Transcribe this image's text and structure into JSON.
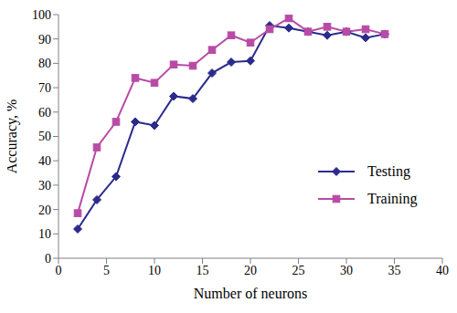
{
  "chart_data": {
    "type": "line",
    "x_label": "Number of neurons",
    "y_label": "Accuracy, %",
    "x": [
      2,
      4,
      6,
      8,
      10,
      12,
      14,
      16,
      18,
      20,
      22,
      24,
      26,
      28,
      30,
      32,
      34
    ],
    "series": [
      {
        "name": "Testing",
        "color": "#2b2b8c",
        "marker": "diamond",
        "values": [
          12,
          24,
          33.5,
          56,
          54.5,
          66.5,
          65.5,
          76,
          80.5,
          81,
          95.5,
          94.5,
          93,
          91.5,
          93,
          90.5,
          92
        ]
      },
      {
        "name": "Training",
        "color": "#b84ba6",
        "marker": "square",
        "values": [
          18.5,
          45.5,
          56,
          74,
          72,
          79.5,
          79,
          85.5,
          91.5,
          88.5,
          94,
          98.5,
          93,
          95,
          93,
          94,
          92
        ]
      }
    ],
    "xlim": [
      0,
      40
    ],
    "xticks": [
      0,
      5,
      10,
      15,
      20,
      25,
      30,
      35,
      40
    ],
    "ylim": [
      0,
      100
    ],
    "yticks": [
      0,
      10,
      20,
      30,
      40,
      50,
      60,
      70,
      80,
      90,
      100
    ],
    "grid": false,
    "legend": "right"
  }
}
